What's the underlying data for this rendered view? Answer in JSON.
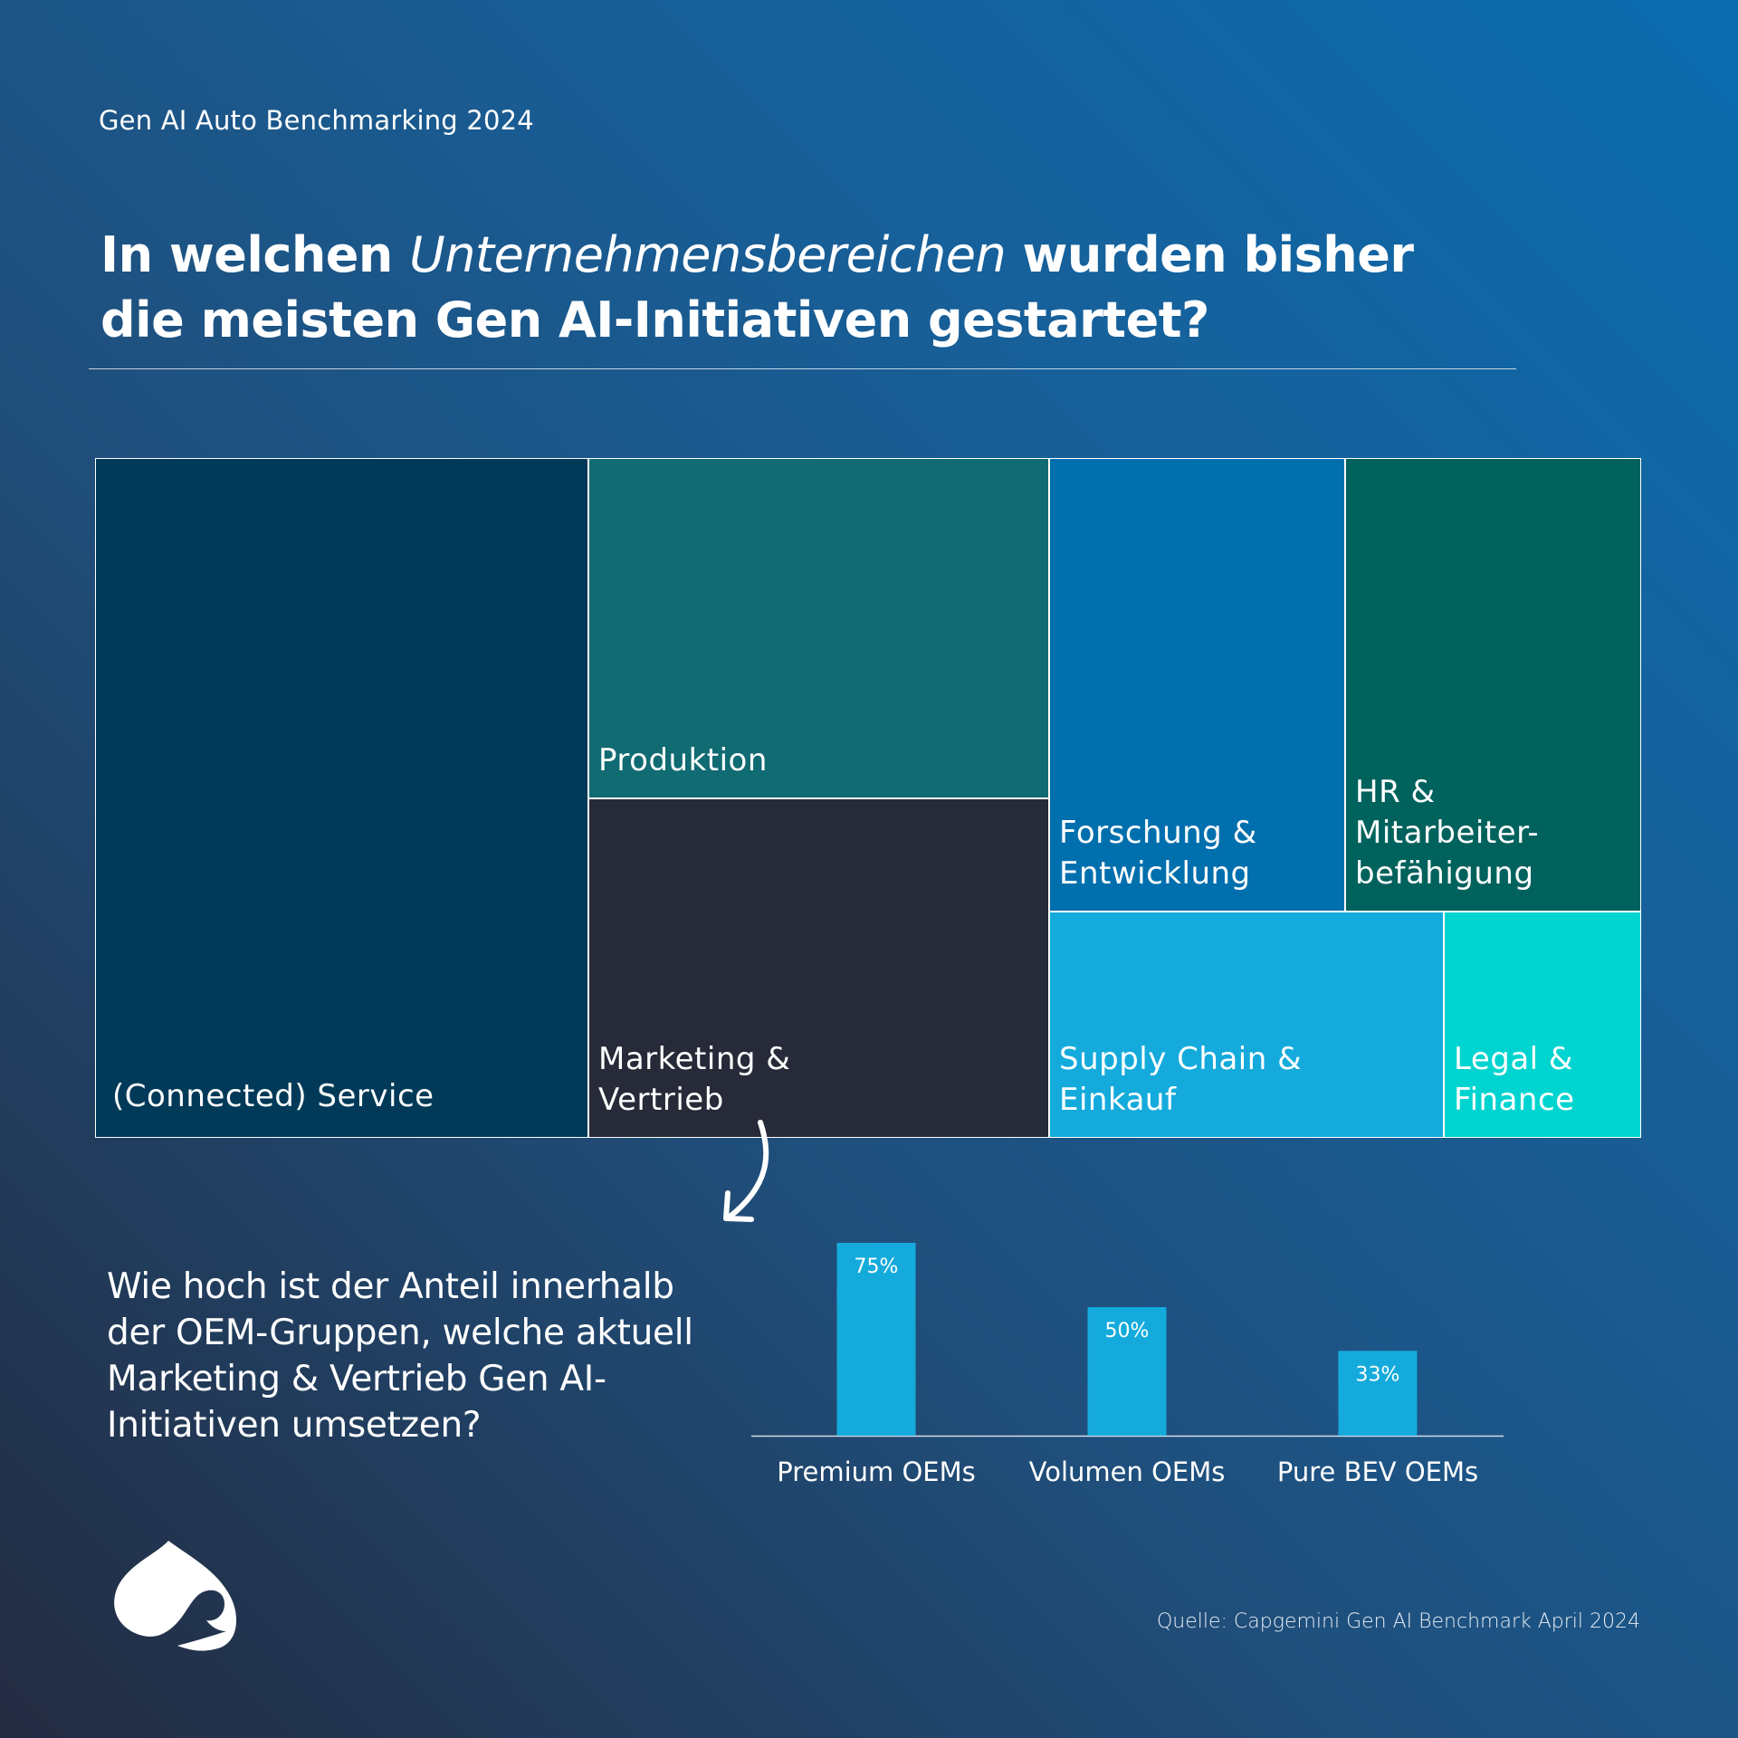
{
  "header": {
    "kicker": "Gen AI Auto Benchmarking 2024",
    "title_line1_pre": "In welchen ",
    "title_line1_italic": "Unternehmensbereichen",
    "title_line1_post": " wurden bisher",
    "title_line2": "die meisten Gen AI-Initiativen gestartet?"
  },
  "treemap": {
    "tiles": [
      {
        "name": "connected-service",
        "label_lines": [
          "(Connected) Service"
        ],
        "color": "#003a58"
      },
      {
        "name": "produktion",
        "label_lines": [
          "Produktion"
        ],
        "color": "#116b72"
      },
      {
        "name": "marketing-vertrieb",
        "label_lines": [
          "Marketing &",
          "Vertrieb"
        ],
        "color": "#272a38"
      },
      {
        "name": "forschung-entwicklung",
        "label_lines": [
          "Forschung &",
          "Entwicklung"
        ],
        "color": "#006fae"
      },
      {
        "name": "hr-mitarbeiterbefaehigung",
        "label_lines": [
          "HR &",
          "Mitarbeiter-",
          "befähigung"
        ],
        "color": "#00625d"
      },
      {
        "name": "supply-chain-einkauf",
        "label_lines": [
          "Supply Chain &",
          "Einkauf"
        ],
        "color": "#14abdc"
      },
      {
        "name": "legal-finance",
        "label_lines": [
          "Legal &",
          "Finance"
        ],
        "color": "#00d4d0"
      }
    ]
  },
  "question": {
    "lines": [
      "Wie hoch ist der Anteil innerhalb",
      "der OEM-Gruppen, welche aktuell",
      "Marketing & Vertrieb Gen AI-",
      "Initiativen umsetzen?"
    ]
  },
  "chart_data": {
    "type": "bar",
    "title": "Wie hoch ist der Anteil innerhalb der OEM-Gruppen, welche aktuell Marketing & Vertrieb Gen AI-Initiativen umsetzen?",
    "categories": [
      "Premium OEMs",
      "Volumen OEMs",
      "Pure BEV OEMs"
    ],
    "values": [
      75,
      50,
      33
    ],
    "value_labels": [
      "75%",
      "50%",
      "33%"
    ],
    "xlabel": "",
    "ylabel": "",
    "ylim": [
      0,
      100
    ],
    "grid": false,
    "bar_color": "#14abdc"
  },
  "footer": {
    "source": "Quelle: Capgemini Gen AI Benchmark April 2024",
    "logo_icon": "capgemini-spade-icon"
  }
}
